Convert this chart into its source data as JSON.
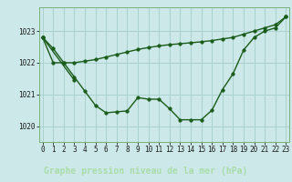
{
  "xlabel": "Graphe pression niveau de la mer (hPa)",
  "bg_color": "#cce8e8",
  "plot_bg_color": "#cce8e8",
  "label_bg_color": "#2d6b2d",
  "grid_color": "#aad0d0",
  "line_color": "#1a5c1a",
  "ylim": [
    1019.5,
    1023.75
  ],
  "xlim": [
    -0.3,
    23.3
  ],
  "yticks": [
    1020,
    1021,
    1022,
    1023
  ],
  "xticks": [
    0,
    1,
    2,
    3,
    4,
    5,
    6,
    7,
    8,
    9,
    10,
    11,
    12,
    13,
    14,
    15,
    16,
    17,
    18,
    19,
    20,
    21,
    22,
    23
  ],
  "series1_x": [
    0,
    1,
    2,
    3,
    4,
    5,
    6,
    7,
    8,
    9,
    10,
    11,
    12,
    13,
    14,
    15,
    16,
    17,
    18,
    19,
    20,
    21,
    22,
    23
  ],
  "series1_y": [
    1022.8,
    1022.45,
    1022.0,
    1021.55,
    1021.1,
    1020.65,
    1020.42,
    1020.45,
    1020.48,
    1020.9,
    1020.85,
    1020.85,
    1020.55,
    1020.2,
    1020.2,
    1020.2,
    1020.5,
    1021.15,
    1021.65,
    1022.4,
    1022.8,
    1023.0,
    1023.1,
    1023.45
  ],
  "series2_x": [
    0,
    3
  ],
  "series2_y": [
    1022.8,
    1021.45
  ],
  "series3_x": [
    0,
    1,
    2,
    3,
    4,
    5,
    6,
    7,
    8,
    9,
    10,
    11,
    12,
    13,
    14,
    15,
    16,
    17,
    18,
    19,
    20,
    21,
    22,
    23
  ],
  "series3_y": [
    1022.8,
    1022.0,
    1022.0,
    1022.0,
    1022.05,
    1022.1,
    1022.18,
    1022.26,
    1022.34,
    1022.42,
    1022.48,
    1022.53,
    1022.57,
    1022.6,
    1022.63,
    1022.66,
    1022.7,
    1022.75,
    1022.8,
    1022.9,
    1023.0,
    1023.1,
    1023.2,
    1023.45
  ],
  "marker_size": 2.5,
  "line_width": 1.0,
  "tick_fontsize": 5.5,
  "label_fontsize": 7.0
}
